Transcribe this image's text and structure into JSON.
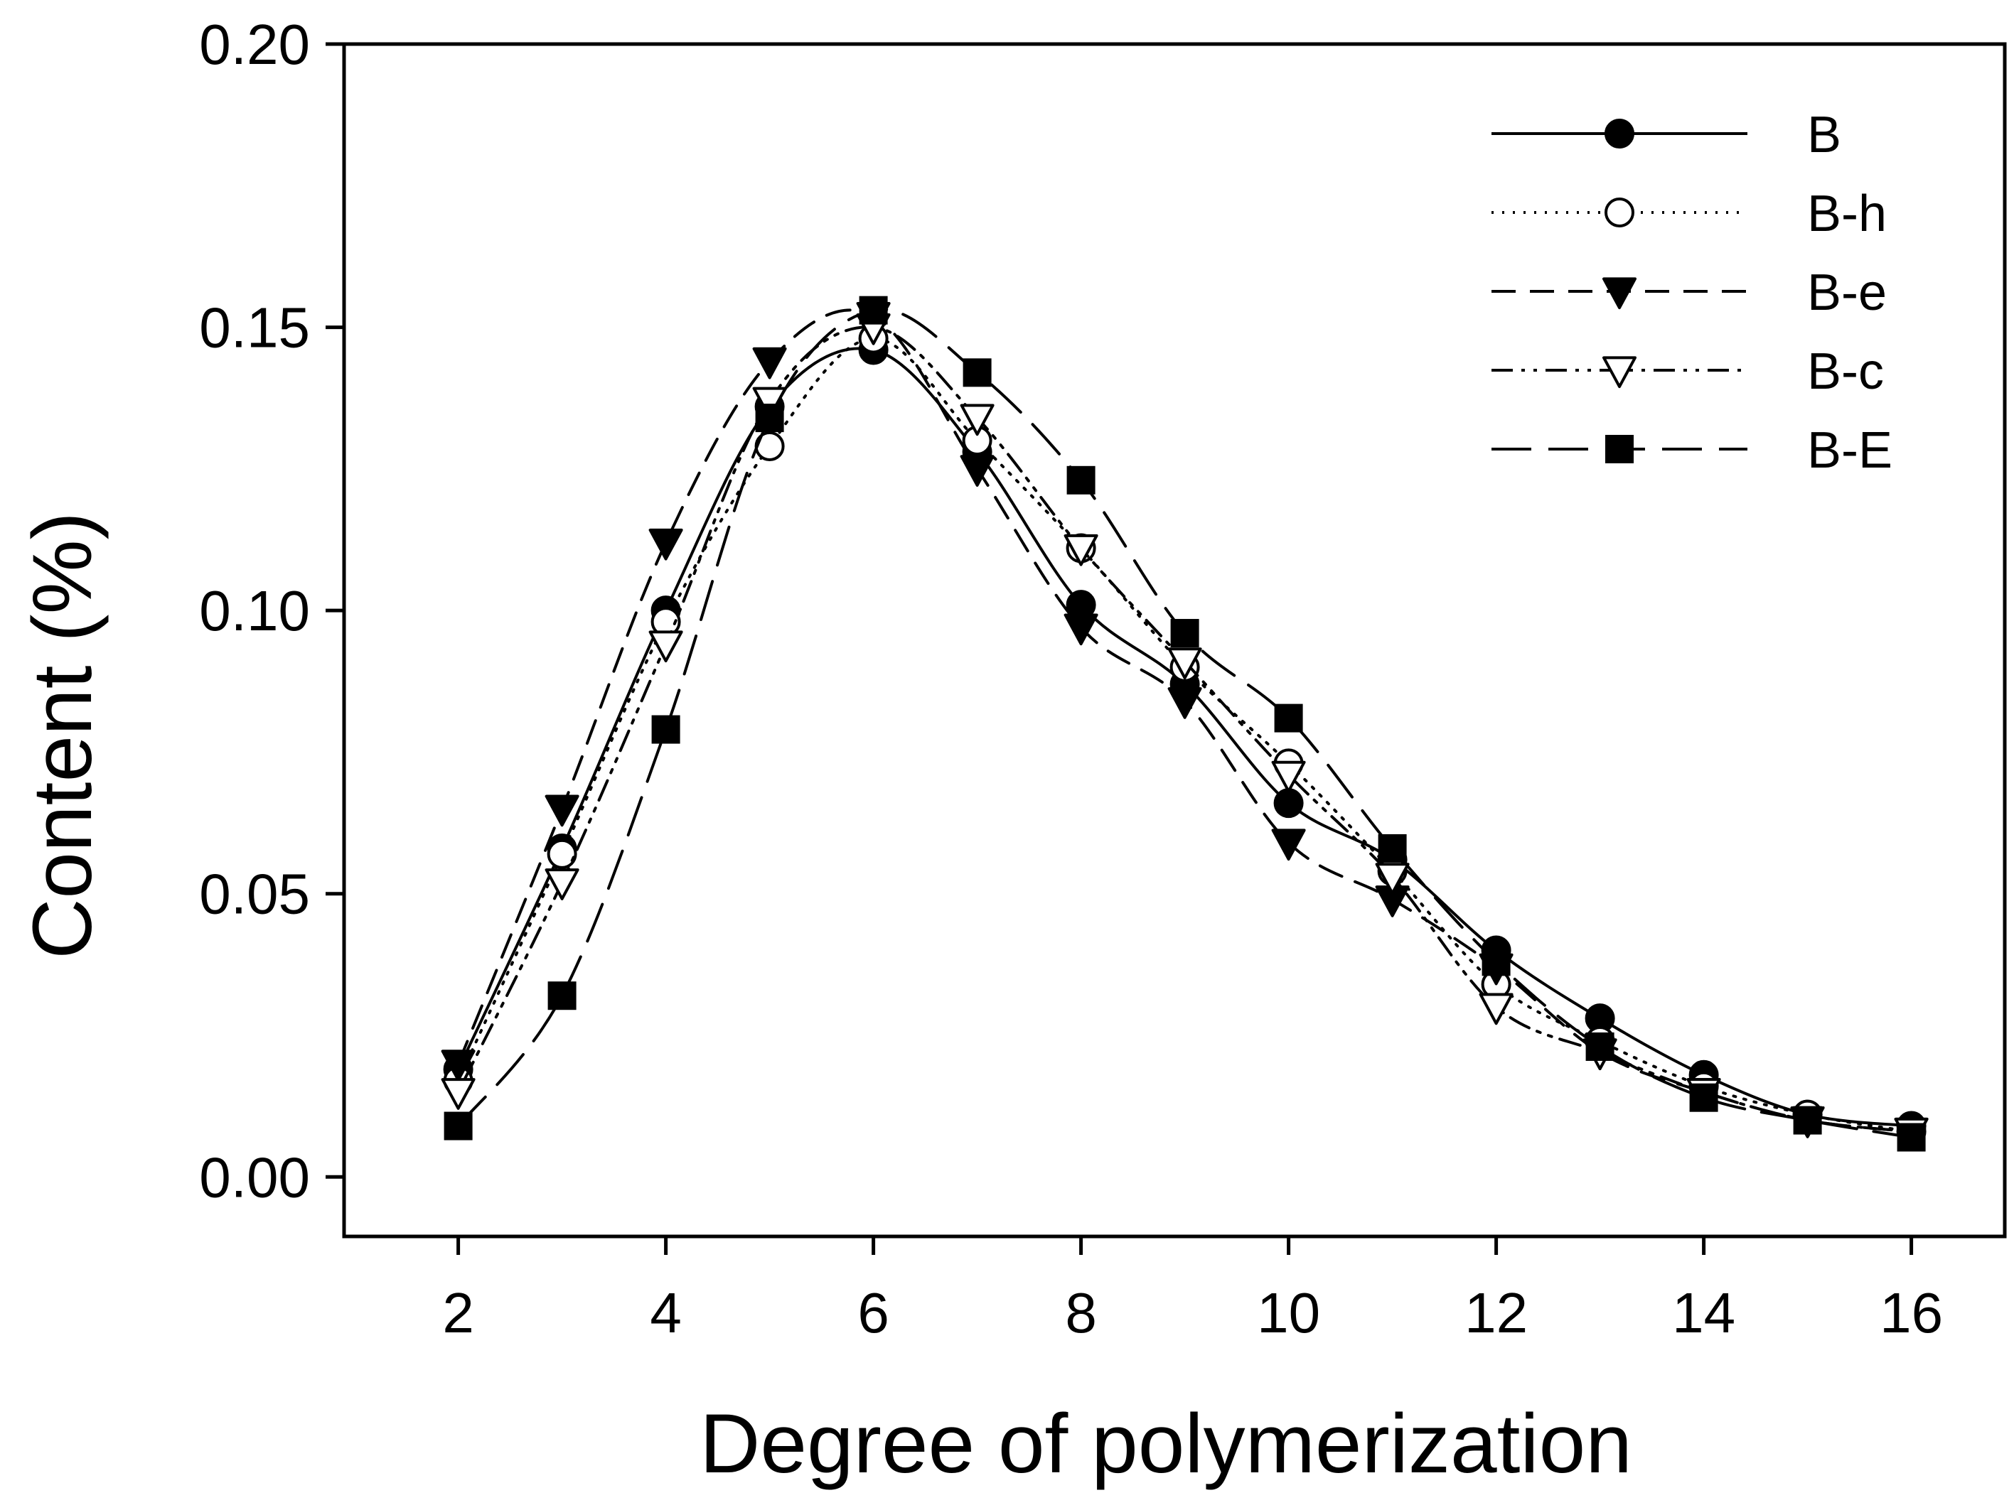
{
  "chart_data": {
    "type": "line",
    "title": "",
    "xlabel": "Degree of polymerization",
    "ylabel": "Content (%)",
    "xlim": [
      0.9,
      16.9
    ],
    "ylim": [
      -0.0105,
      0.2
    ],
    "x_ticks": [
      2,
      4,
      6,
      8,
      10,
      12,
      14,
      16
    ],
    "y_ticks": [
      0.0,
      0.05,
      0.1,
      0.15,
      0.2
    ],
    "x_tick_labels": [
      "2",
      "4",
      "6",
      "8",
      "10",
      "12",
      "14",
      "16"
    ],
    "y_tick_labels": [
      "0.00",
      "0.05",
      "0.10",
      "0.15",
      "0.20"
    ],
    "grid": false,
    "legend_position": "top-right",
    "x": [
      2,
      3,
      4,
      5,
      6,
      7,
      8,
      9,
      10,
      11,
      12,
      13,
      14,
      15,
      16
    ],
    "series": [
      {
        "name": "B",
        "marker": "filled-circle",
        "dash": "solid",
        "values": [
          0.019,
          0.058,
          0.1,
          0.136,
          0.146,
          0.128,
          0.101,
          0.087,
          0.066,
          0.056,
          0.04,
          0.028,
          0.018,
          0.011,
          0.009
        ]
      },
      {
        "name": "B-h",
        "marker": "open-circle",
        "dash": "dotted",
        "values": [
          0.017,
          0.057,
          0.098,
          0.129,
          0.148,
          0.13,
          0.111,
          0.09,
          0.073,
          0.054,
          0.034,
          0.024,
          0.016,
          0.011,
          0.008
        ]
      },
      {
        "name": "B-e",
        "marker": "filled-triangle-down",
        "dash": "dashed",
        "values": [
          0.02,
          0.065,
          0.112,
          0.144,
          0.152,
          0.125,
          0.097,
          0.084,
          0.059,
          0.049,
          0.037,
          0.022,
          0.015,
          0.01,
          0.008
        ]
      },
      {
        "name": "B-c",
        "marker": "open-triangle-down",
        "dash": "dash-dot-dot",
        "values": [
          0.015,
          0.052,
          0.094,
          0.137,
          0.15,
          0.134,
          0.111,
          0.091,
          0.071,
          0.053,
          0.03,
          0.022,
          0.015,
          0.01,
          0.008
        ]
      },
      {
        "name": "B-E",
        "marker": "filled-square",
        "dash": "long-dash",
        "values": [
          0.009,
          0.032,
          0.079,
          0.134,
          0.153,
          0.142,
          0.123,
          0.096,
          0.081,
          0.058,
          0.038,
          0.023,
          0.014,
          0.01,
          0.007
        ]
      }
    ]
  }
}
